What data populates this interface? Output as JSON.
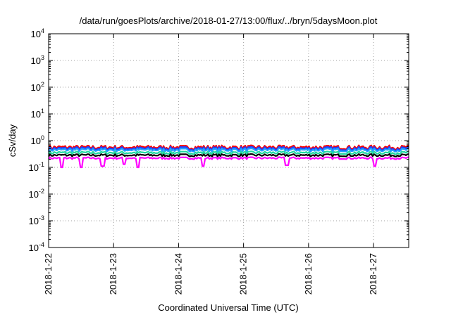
{
  "chart_data": {
    "type": "line",
    "title": "/data/run/goesPlots/archive/2018-01-27/13:00/flux/../bryn/5daysMoon.plot",
    "xlabel": "Coordinated Universal Time (UTC)",
    "ylabel": "cSv/day",
    "yscale": "log",
    "ylim": [
      0.0001,
      10000
    ],
    "y_ticks": [
      {
        "value": 0.0001,
        "base": "10",
        "exp": "-4"
      },
      {
        "value": 0.001,
        "base": "10",
        "exp": "-3"
      },
      {
        "value": 0.01,
        "base": "10",
        "exp": "-2"
      },
      {
        "value": 0.1,
        "base": "10",
        "exp": "-1"
      },
      {
        "value": 1,
        "base": "10",
        "exp": "0"
      },
      {
        "value": 10,
        "base": "10",
        "exp": "1"
      },
      {
        "value": 100,
        "base": "10",
        "exp": "2"
      },
      {
        "value": 1000,
        "base": "10",
        "exp": "3"
      },
      {
        "value": 10000,
        "base": "10",
        "exp": "4"
      }
    ],
    "xlim": [
      "2018-01-22 00:00",
      "2018-01-27 13:00"
    ],
    "x_ticks": [
      "2018-1-22",
      "2018-1-23",
      "2018-1-24",
      "2018-1-25",
      "2018-1-26",
      "2018-1-27"
    ],
    "grid": true,
    "series": [
      {
        "color": "#ff0000",
        "level": 0.58,
        "spikes": [],
        "values": []
      },
      {
        "color": "#1f3fff",
        "level": 0.52,
        "spikes": [],
        "values": []
      },
      {
        "color": "#1fa0ff",
        "level": 0.46,
        "spikes": [],
        "values": []
      },
      {
        "color": "#20d8a0",
        "level": 0.36,
        "spikes": [],
        "values": []
      },
      {
        "color": "#000000",
        "level": 0.29,
        "spikes": [],
        "values": []
      },
      {
        "color": "#ff00ff",
        "level": 0.225,
        "spikes": [
          {
            "x": "2018-01-22 05:00",
            "value": 0.1
          },
          {
            "x": "2018-01-22 12:00",
            "value": 0.1
          },
          {
            "x": "2018-01-22 20:00",
            "value": 0.11
          },
          {
            "x": "2018-01-23 04:00",
            "value": 0.13
          },
          {
            "x": "2018-01-23 09:00",
            "value": 0.1
          },
          {
            "x": "2018-01-24 09:00",
            "value": 0.11
          },
          {
            "x": "2018-01-25 16:00",
            "value": 0.12
          },
          {
            "x": "2018-01-27 00:30",
            "value": 0.11
          }
        ],
        "values": []
      }
    ]
  }
}
